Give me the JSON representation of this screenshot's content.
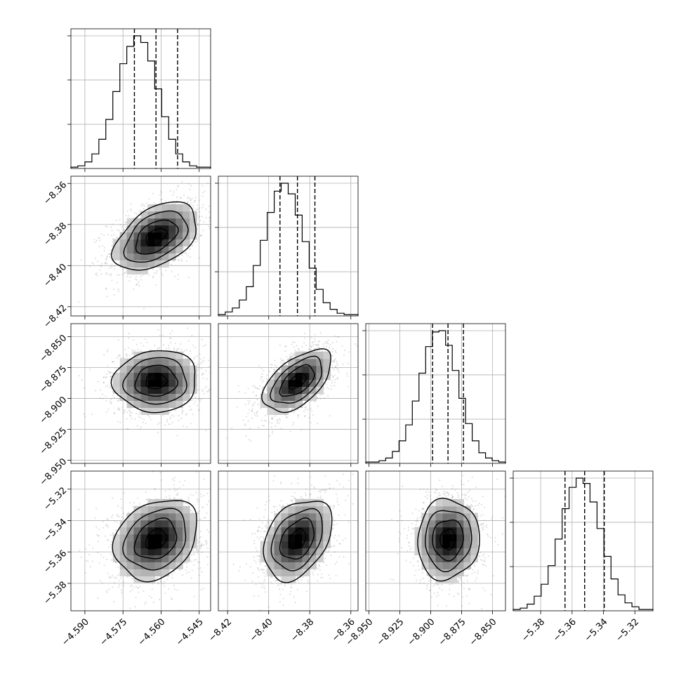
{
  "chart_data": {
    "type": "corner",
    "parameters": [
      {
        "mean": -4.562,
        "sigma": 0.0082,
        "quantiles": [
          -4.5705,
          -4.562,
          -4.5535
        ],
        "range": [
          -4.5955,
          -4.5405
        ],
        "ticks": [
          -4.59,
          -4.575,
          -4.56,
          -4.545
        ],
        "tick_labels": [
          "−4.590",
          "−4.575",
          "−4.560",
          "−4.545"
        ],
        "hist_counts": [
          1,
          2,
          5,
          11,
          22,
          37,
          58,
          79,
          92,
          100,
          95,
          81,
          60,
          39,
          22,
          11,
          5,
          2,
          1,
          1
        ]
      },
      {
        "mean": -8.386,
        "sigma": 0.0083,
        "quantiles": [
          -8.3945,
          -8.386,
          -8.3775
        ],
        "range": [
          -8.4245,
          -8.3565
        ],
        "ticks": [
          -8.42,
          -8.4,
          -8.38,
          -8.36
        ],
        "tick_labels": [
          "−8.42",
          "−8.40",
          "−8.38",
          "−8.36"
        ],
        "hist_counts": [
          1,
          3,
          6,
          12,
          22,
          38,
          57,
          78,
          94,
          100,
          92,
          76,
          56,
          36,
          20,
          10,
          5,
          2,
          1,
          1
        ]
      },
      {
        "mean": -8.886,
        "sigma": 0.0125,
        "quantiles": [
          -8.8985,
          -8.886,
          -8.8735
        ],
        "range": [
          -8.9525,
          -8.8395
        ],
        "ticks": [
          -8.95,
          -8.925,
          -8.9,
          -8.875,
          -8.85
        ],
        "tick_labels": [
          "−8.950",
          "−8.925",
          "−8.900",
          "−8.875",
          "−8.850"
        ],
        "hist_counts": [
          1,
          1,
          2,
          4,
          9,
          17,
          29,
          47,
          68,
          88,
          99,
          100,
          89,
          70,
          49,
          30,
          17,
          8,
          4,
          2,
          1
        ]
      },
      {
        "mean": -5.352,
        "sigma": 0.0128,
        "quantiles": [
          -5.3645,
          -5.352,
          -5.3395
        ],
        "range": [
          -5.3975,
          -5.3085
        ],
        "ticks": [
          -5.38,
          -5.36,
          -5.34,
          -5.32
        ],
        "tick_labels": [
          "−5.38",
          "−5.36",
          "−5.34",
          "−5.32"
        ],
        "hist_counts": [
          1,
          2,
          5,
          11,
          20,
          34,
          54,
          77,
          93,
          100,
          96,
          82,
          62,
          41,
          24,
          12,
          6,
          3,
          1,
          1
        ]
      }
    ],
    "correlations": [
      [
        1.0,
        0.45,
        0.05,
        0.25
      ],
      [
        0.45,
        1.0,
        0.55,
        0.35
      ],
      [
        0.05,
        0.55,
        1.0,
        0.05
      ],
      [
        0.25,
        0.35,
        0.05,
        1.0
      ]
    ],
    "contour_levels_sigma": [
      0.5,
      1.0,
      1.5,
      2.0
    ],
    "grid": true,
    "axis_labels": [
      "",
      "",
      "",
      ""
    ]
  }
}
